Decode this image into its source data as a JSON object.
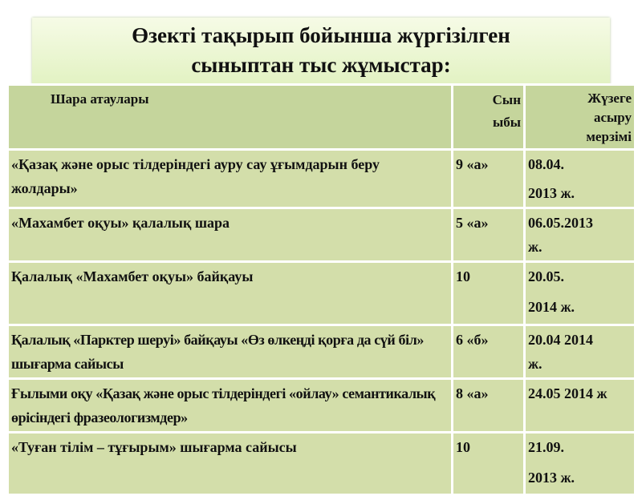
{
  "title": {
    "line1": "Өзекті тақырып  бойынша жүргізілген",
    "line2": "сыныптан тыс жұмыстар:"
  },
  "table": {
    "headers": {
      "name": "Шара атаулары",
      "class_line1": "Сын",
      "class_line2": "ыбы",
      "date_line1": "Жүзеге",
      "date_line2": "асыру",
      "date_line3": "мерзімі"
    },
    "rows": [
      {
        "name": "«Қазақ және орыс тілдеріндегі ауру сау ұғымдарын беру жолдары»",
        "class": "9 «а»",
        "date_line1": "08.04.",
        "date_line2": "2013 ж."
      },
      {
        "name": "«Махамбет оқуы» қалалық шара",
        "class": "5 «а»",
        "date_line1": "06.05.2013",
        "date_line2": "ж."
      },
      {
        "name": "Қалалық «Махамбет оқуы» байқауы",
        "class": "10",
        "date_line1": "20.05.",
        "date_line2": "2014 ж."
      },
      {
        "name": "Қалалық «Парктер шеруі» байқауы «Өз өлкеңді қорға да сүй біл» шығарма сайысы",
        "class": "6 «б»",
        "date_line1": "20.04 2014",
        "date_line2": "ж."
      },
      {
        "name": "Ғылыми оқу «Қазақ және орыс тілдеріндегі «ойлау» семантикалық өрісіндегі фразеологизмдер»",
        "class": "8 «а»",
        "date_line1": "24.05 2014 ж",
        "date_line2": ""
      },
      {
        "name": "«Туған тілім – тұғырым» шығарма сайысы",
        "class": "10",
        "date_line1": "21.09.",
        "date_line2": "2013 ж."
      }
    ]
  },
  "colors": {
    "header_bg": "#c5d59c",
    "row_bg": "#d3deaa",
    "title_bg": "#e8f5cf"
  }
}
